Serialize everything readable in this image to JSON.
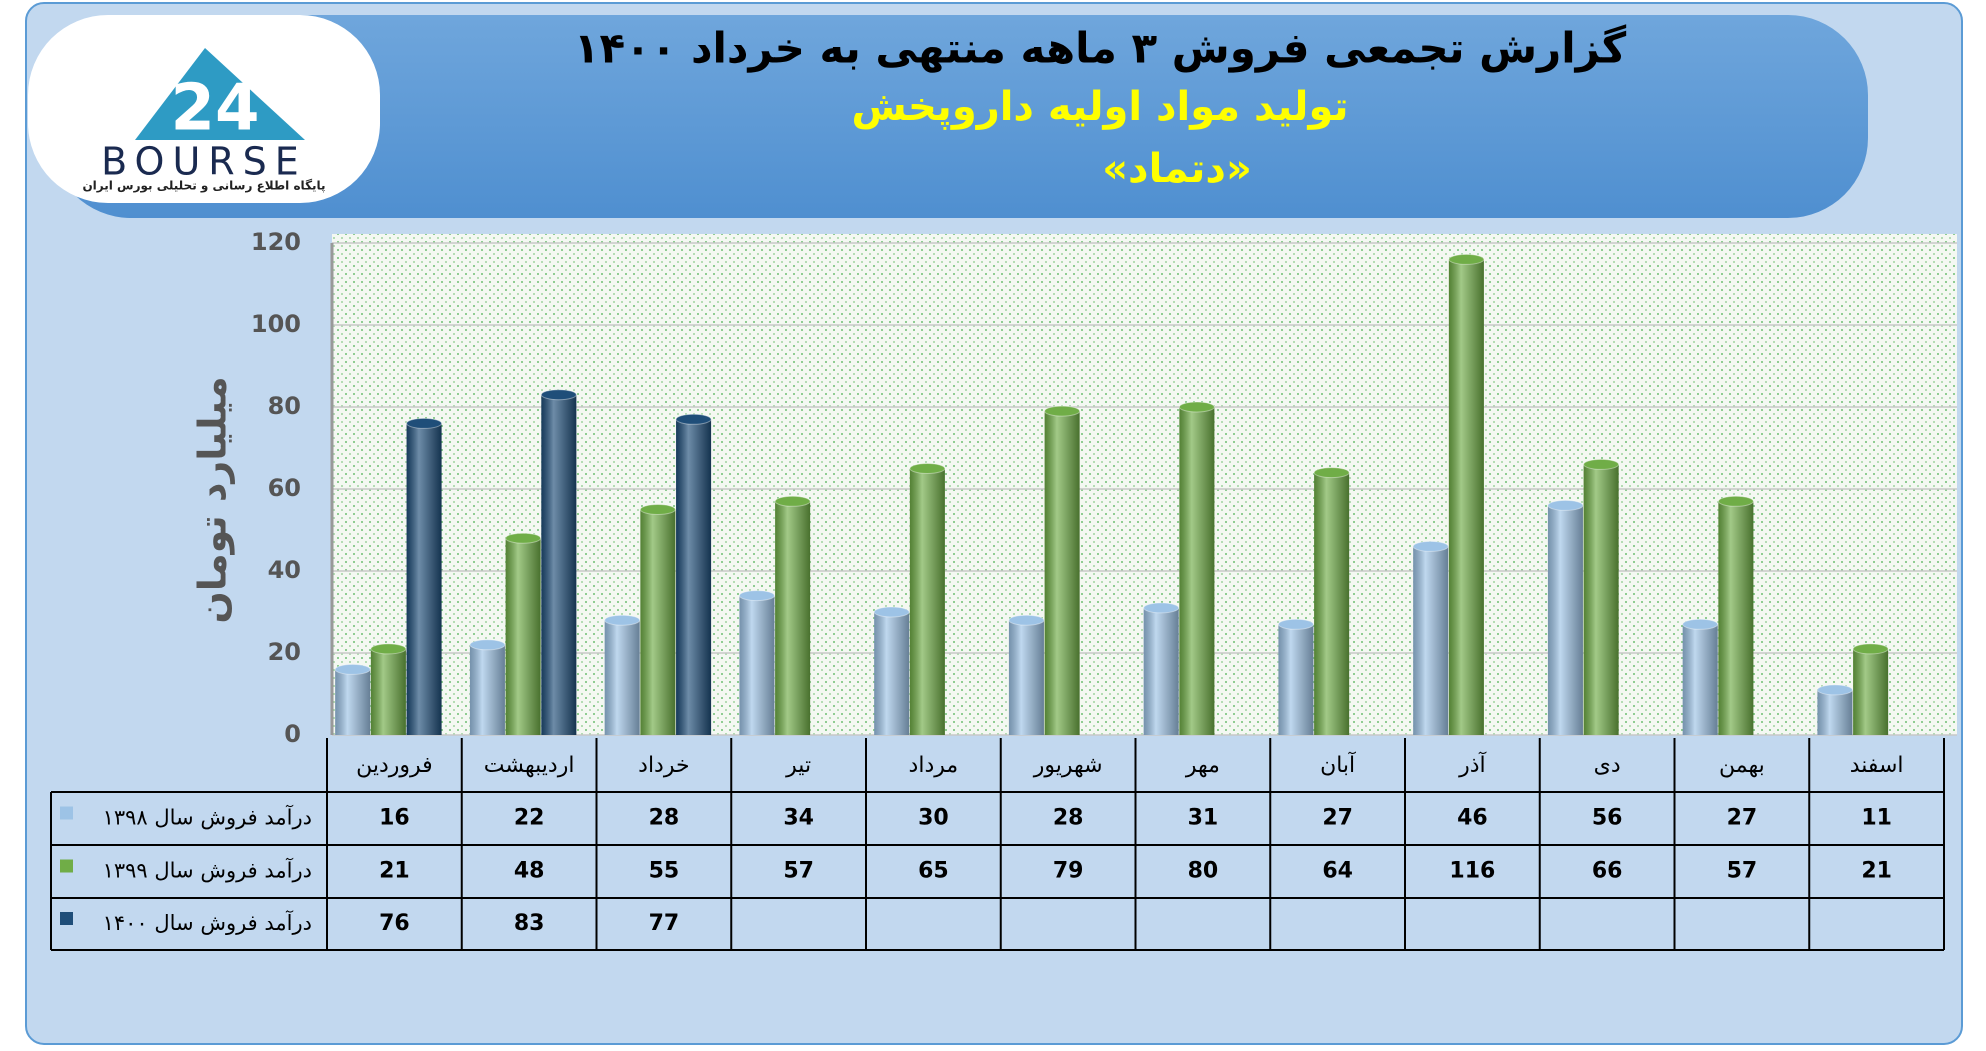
{
  "chart_data": {
    "type": "bar",
    "title": "گزارش تجمعی فروش ۳ ماهه منتهی به خرداد ۱۴۰۰",
    "subtitle": "تولید مواد اولیه داروپخش",
    "symbol": "«دتماد»",
    "logo": {
      "number": "24",
      "name": "BOURSE",
      "tagline": "پایگاه اطلاع رسانی و تحلیلی بورس ایران"
    },
    "y_label": "میلیارد تومان",
    "categories": [
      "فروردین",
      "اردیبهشت",
      "خرداد",
      "تیر",
      "مرداد",
      "شهریور",
      "مهر",
      "آبان",
      "آذر",
      "دی",
      "بهمن",
      "اسفند"
    ],
    "series": [
      {
        "name": "درآمد فروش سال ۱۳۹۸",
        "color": "#9dc3e6",
        "values": [
          16,
          22,
          28,
          34,
          30,
          28,
          31,
          27,
          46,
          56,
          27,
          11
        ]
      },
      {
        "name": "درآمد فروش سال ۱۳۹۹",
        "color": "#70ad47",
        "values": [
          21,
          48,
          55,
          57,
          65,
          79,
          80,
          64,
          116,
          66,
          57,
          21
        ]
      },
      {
        "name": "درآمد فروش سال ۱۴۰۰",
        "color": "#1f4e79",
        "values": [
          76,
          83,
          77,
          null,
          null,
          null,
          null,
          null,
          null,
          null,
          null,
          null
        ]
      }
    ],
    "ylim": [
      0,
      120
    ],
    "yticks": [
      0,
      20,
      40,
      60,
      80,
      100,
      120
    ],
    "grid": true
  }
}
